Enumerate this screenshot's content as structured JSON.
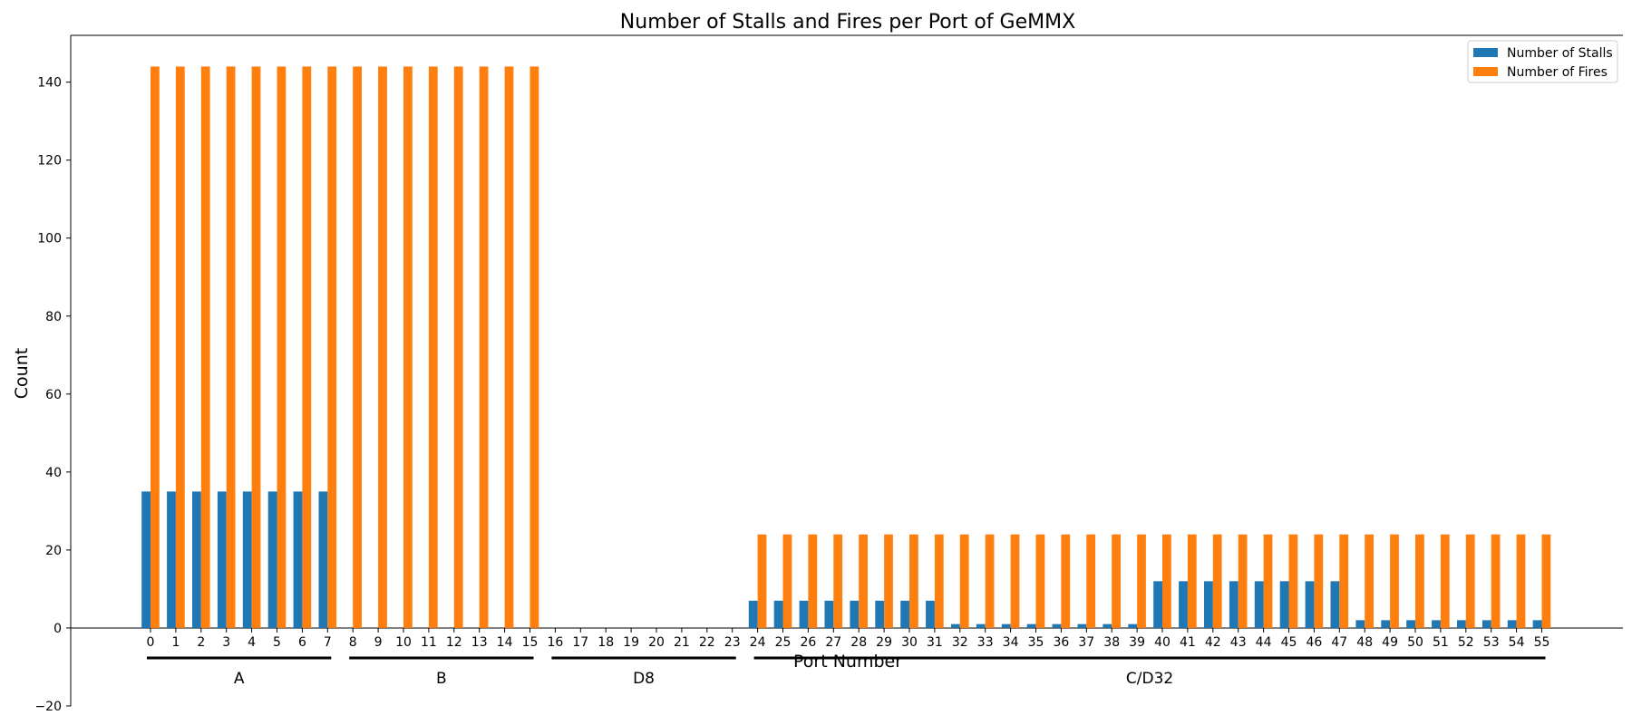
{
  "chart_data": {
    "type": "bar",
    "title": "Number of Stalls and Fires per Port of GeMMX",
    "xlabel": "Port Number",
    "ylabel": "Count",
    "ylim": [
      -20,
      152
    ],
    "yticks": [
      -20,
      0,
      20,
      40,
      60,
      80,
      100,
      120,
      140
    ],
    "grid": false,
    "legend_position": "top-right",
    "categories": [
      "0",
      "1",
      "2",
      "3",
      "4",
      "5",
      "6",
      "7",
      "8",
      "9",
      "10",
      "11",
      "12",
      "13",
      "14",
      "15",
      "16",
      "17",
      "18",
      "19",
      "20",
      "21",
      "22",
      "23",
      "24",
      "25",
      "26",
      "27",
      "28",
      "29",
      "30",
      "31",
      "32",
      "33",
      "34",
      "35",
      "36",
      "37",
      "38",
      "39",
      "40",
      "41",
      "42",
      "43",
      "44",
      "45",
      "46",
      "47",
      "48",
      "49",
      "50",
      "51",
      "52",
      "53",
      "54",
      "55"
    ],
    "series": [
      {
        "name": "Number of Stalls",
        "color": "#1f77b4",
        "values": [
          35,
          35,
          35,
          35,
          35,
          35,
          35,
          35,
          0,
          0,
          0,
          0,
          0,
          0,
          0,
          0,
          0,
          0,
          0,
          0,
          0,
          0,
          0,
          0,
          7,
          7,
          7,
          7,
          7,
          7,
          7,
          7,
          1,
          1,
          1,
          1,
          1,
          1,
          1,
          1,
          12,
          12,
          12,
          12,
          12,
          12,
          12,
          12,
          2,
          2,
          2,
          2,
          2,
          2,
          2,
          2
        ]
      },
      {
        "name": "Number of Fires",
        "color": "#ff7f0e",
        "values": [
          144,
          144,
          144,
          144,
          144,
          144,
          144,
          144,
          144,
          144,
          144,
          144,
          144,
          144,
          144,
          144,
          0,
          0,
          0,
          0,
          0,
          0,
          0,
          0,
          24,
          24,
          24,
          24,
          24,
          24,
          24,
          24,
          24,
          24,
          24,
          24,
          24,
          24,
          24,
          24,
          24,
          24,
          24,
          24,
          24,
          24,
          24,
          24,
          24,
          24,
          24,
          24,
          24,
          24,
          24,
          24
        ]
      }
    ],
    "groups": [
      {
        "label": "A",
        "start": 0,
        "end": 7
      },
      {
        "label": "B",
        "start": 8,
        "end": 15
      },
      {
        "label": "D8",
        "start": 16,
        "end": 23
      },
      {
        "label": "C/D32",
        "start": 24,
        "end": 55
      }
    ]
  }
}
